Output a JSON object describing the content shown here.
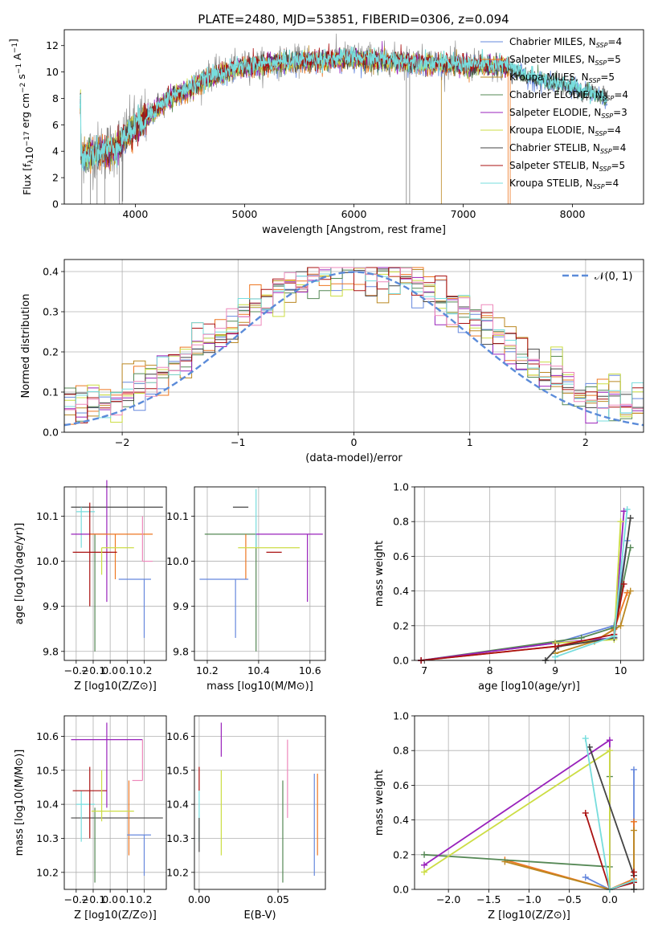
{
  "title": "PLATE=2480, MJD=53851, FIBERID=0306, z=0.094",
  "colors": {
    "CM": "#6688dd",
    "SM": "#ee7722",
    "KM": "#bb8822",
    "CE": "#558855",
    "SE": "#9922bb",
    "KE": "#ccdd44",
    "CS": "#444444",
    "SS": "#aa1111",
    "KS": "#77dddd",
    "data": "#808080",
    "gauss": "#5b8bd9",
    "pink": "#ee88bb"
  },
  "chart_data": [
    {
      "id": "spectrum",
      "type": "line",
      "title": "PLATE=2480, MJD=53851, FIBERID=0306, z=0.094",
      "xlabel": "wavelength [Angstrom, rest frame]",
      "ylabel": "Flux [f_λ 10^-17 erg cm^-2 s^-1 A^-1]",
      "xlim": [
        3350,
        8650
      ],
      "ylim": [
        0,
        13.2
      ],
      "xticks": [
        4000,
        5000,
        6000,
        7000,
        8000
      ],
      "yticks": [
        0,
        2,
        4,
        6,
        8,
        10,
        12
      ],
      "grid": false,
      "legend": "right",
      "x": [
        3500,
        3800,
        4000,
        4300,
        4700,
        5000,
        5500,
        6000,
        6500,
        7000,
        7400,
        7600,
        8000,
        8300,
        8500
      ],
      "series": [
        {
          "name": "data",
          "values": [
            3.8,
            4.2,
            6.0,
            8.0,
            9.8,
            10.5,
            10.9,
            11.2,
            10.9,
            10.6,
            10.3,
            9.5,
            8.6,
            8.0,
            7.6
          ]
        },
        {
          "name": "Kroupa STELIB, N_SSP=4",
          "values": [
            3.6,
            4.1,
            5.8,
            7.9,
            9.6,
            10.4,
            10.8,
            11.0,
            10.7,
            10.5,
            10.4,
            9.6,
            8.8,
            8.1,
            7.6
          ]
        }
      ],
      "legend_entries": [
        {
          "key": "CM",
          "label": "Chabrier MILES, N",
          "sub": "SSP",
          "tail": "=4"
        },
        {
          "key": "SM",
          "label": "Salpeter MILES, N",
          "sub": "SSP",
          "tail": "=5"
        },
        {
          "key": "KM",
          "label": "Kroupa MILES, N",
          "sub": "SSP",
          "tail": "=5"
        },
        {
          "key": "CE",
          "label": "Chabrier ELODIE, N",
          "sub": "SSP",
          "tail": "=4"
        },
        {
          "key": "SE",
          "label": "Salpeter ELODIE, N",
          "sub": "SSP",
          "tail": "=3"
        },
        {
          "key": "KE",
          "label": "Kroupa ELODIE, N",
          "sub": "SSP",
          "tail": "=4"
        },
        {
          "key": "CS",
          "label": "Chabrier STELIB, N",
          "sub": "SSP",
          "tail": "=4"
        },
        {
          "key": "SS",
          "label": "Salpeter STELIB, N",
          "sub": "SSP",
          "tail": "=5"
        },
        {
          "key": "KS",
          "label": "Kroupa STELIB, N",
          "sub": "SSP",
          "tail": "=4"
        }
      ]
    },
    {
      "id": "residuals",
      "type": "line",
      "xlabel": "(data-model)/error",
      "ylabel": "Normed distribution",
      "xlim": [
        -2.5,
        2.5
      ],
      "ylim": [
        0,
        0.43
      ],
      "xticks": [
        -2,
        -1,
        0,
        1,
        2
      ],
      "yticks": [
        0.0,
        0.1,
        0.2,
        0.3,
        0.4
      ],
      "grid": true,
      "legend": "top-right",
      "gauss_label": "𝒩(0, 1)"
    },
    {
      "id": "age_vs_Z",
      "type": "scatter",
      "xlabel": "Z [log10(Z/Z⊙)]",
      "ylabel": "age [log10(age/yr)]",
      "xlim": [
        -0.27,
        0.33
      ],
      "ylim": [
        9.78,
        10.165
      ],
      "xticks": [
        -0.2,
        -0.1,
        0.0,
        0.1,
        0.2
      ],
      "yticks": [
        9.8,
        9.9,
        10.0,
        10.1
      ],
      "grid": true,
      "points": [
        {
          "key": "CS",
          "x": 0.04,
          "y": 10.12,
          "xerr": [
            0.27,
            0.27
          ],
          "yerr": [
            0.0,
            0.0
          ]
        },
        {
          "key": "CE",
          "x": -0.09,
          "y": 10.06,
          "xerr": [
            0.0,
            0.0
          ],
          "yerr": [
            0.26,
            0.0
          ]
        },
        {
          "key": "KS",
          "x": -0.17,
          "y": 10.11,
          "xerr": [
            0.03,
            0.08
          ],
          "yerr": [
            0.08,
            0.01
          ]
        },
        {
          "key": "SE",
          "x": -0.02,
          "y": 10.06,
          "xerr": [
            0.21,
            0.0
          ],
          "yerr": [
            0.15,
            0.12
          ]
        },
        {
          "key": "SM",
          "x": 0.03,
          "y": 10.06,
          "xerr": [
            0.15,
            0.22
          ],
          "yerr": [
            0.1,
            0.0
          ]
        },
        {
          "key": "SS",
          "x": -0.12,
          "y": 10.02,
          "xerr": [
            0.1,
            0.16
          ],
          "yerr": [
            0.12,
            0.11
          ]
        },
        {
          "key": "KE",
          "x": -0.05,
          "y": 10.03,
          "xerr": [
            0.0,
            0.19
          ],
          "yerr": [
            0.06,
            0.0
          ]
        },
        {
          "key": "pink",
          "x": 0.19,
          "y": 10.0,
          "xerr": [
            0.0,
            0.06
          ],
          "yerr": [
            0.0,
            0.1
          ]
        },
        {
          "key": "CM",
          "x": 0.2,
          "y": 9.96,
          "xerr": [
            0.15,
            0.04
          ],
          "yerr": [
            0.13,
            0.0
          ]
        }
      ]
    },
    {
      "id": "age_vs_mass",
      "type": "scatter",
      "xlabel": "mass [log10(M/M⊙)]",
      "ylabel": "",
      "xlim": [
        10.15,
        10.66
      ],
      "ylim": [
        9.78,
        10.165
      ],
      "xticks": [
        10.2,
        10.4,
        10.6
      ],
      "yticks": [
        9.8,
        9.9,
        10.0,
        10.1
      ],
      "grid": true,
      "points": [
        {
          "key": "CS",
          "x": 10.36,
          "y": 10.12,
          "xerr": [
            0.06,
            0.0
          ],
          "yerr": [
            0.0,
            0.0
          ]
        },
        {
          "key": "CE",
          "x": 10.39,
          "y": 10.06,
          "xerr": [
            0.2,
            0.0
          ],
          "yerr": [
            0.26,
            0.0
          ]
        },
        {
          "key": "KS",
          "x": 10.39,
          "y": 10.11,
          "xerr": [
            0.0,
            0.0
          ],
          "yerr": [
            0.08,
            0.05
          ]
        },
        {
          "key": "SE",
          "x": 10.59,
          "y": 10.06,
          "xerr": [
            0.2,
            0.06
          ],
          "yerr": [
            0.15,
            0.0
          ]
        },
        {
          "key": "SM",
          "x": 10.35,
          "y": 10.06,
          "xerr": [
            0.0,
            0.0
          ],
          "yerr": [
            0.1,
            0.0
          ]
        },
        {
          "key": "SS",
          "x": 10.43,
          "y": 10.02,
          "xerr": [
            0.0,
            0.06
          ],
          "yerr": [
            0.0,
            0.0
          ]
        },
        {
          "key": "KE",
          "x": 10.45,
          "y": 10.03,
          "xerr": [
            0.13,
            0.11
          ],
          "yerr": [
            0.0,
            0.0
          ]
        },
        {
          "key": "pink",
          "x": 10.48,
          "y": 10.0,
          "xerr": [
            0.0,
            0.0
          ],
          "yerr": [
            0.0,
            0.0
          ]
        },
        {
          "key": "CM",
          "x": 10.31,
          "y": 9.96,
          "xerr": [
            0.14,
            0.05
          ],
          "yerr": [
            0.13,
            0.0
          ]
        }
      ]
    },
    {
      "id": "weight_vs_age",
      "type": "line",
      "xlabel": "age [log10(age/yr)]",
      "ylabel": "mass weight",
      "xlim": [
        6.85,
        10.35
      ],
      "ylim": [
        0,
        1.0
      ],
      "xticks": [
        7,
        8,
        9,
        10
      ],
      "yticks": [
        0.0,
        0.2,
        0.4,
        0.6,
        0.8,
        1.0
      ],
      "grid": true,
      "series": [
        {
          "key": "CM",
          "x": [
            6.95,
            9.0,
            9.9,
            10.1
          ],
          "y": [
            0.0,
            0.1,
            0.2,
            0.69
          ]
        },
        {
          "key": "SM",
          "x": [
            6.95,
            9.0,
            9.6,
            9.9,
            10.1
          ],
          "y": [
            0.0,
            0.08,
            0.11,
            0.18,
            0.39
          ]
        },
        {
          "key": "KM",
          "x": [
            9.0,
            9.6,
            10.0,
            10.15
          ],
          "y": [
            0.04,
            0.11,
            0.2,
            0.4
          ]
        },
        {
          "key": "CE",
          "x": [
            6.95,
            9.4,
            9.9,
            10.15
          ],
          "y": [
            0.0,
            0.13,
            0.19,
            0.65
          ]
        },
        {
          "key": "SE",
          "x": [
            6.95,
            9.0,
            9.9,
            10.05
          ],
          "y": [
            0.0,
            0.1,
            0.13,
            0.86
          ]
        },
        {
          "key": "KE",
          "x": [
            9.0,
            9.9,
            10.0
          ],
          "y": [
            0.1,
            0.12,
            0.8
          ]
        },
        {
          "key": "CS",
          "x": [
            8.85,
            9.05,
            9.9,
            10.15
          ],
          "y": [
            0.0,
            0.08,
            0.13,
            0.82
          ]
        },
        {
          "key": "SS",
          "x": [
            6.95,
            9.0,
            9.9,
            10.05
          ],
          "y": [
            0.0,
            0.08,
            0.15,
            0.44
          ]
        },
        {
          "key": "KS",
          "x": [
            9.0,
            9.9,
            10.1
          ],
          "y": [
            0.02,
            0.14,
            0.87
          ]
        }
      ]
    },
    {
      "id": "mass_vs_Z",
      "type": "scatter",
      "xlabel": "Z [log10(Z/Z⊙)]",
      "ylabel": "mass [log10(M/M⊙)]",
      "xlim": [
        -0.27,
        0.33
      ],
      "ylim": [
        10.15,
        10.66
      ],
      "xticks": [
        -0.2,
        -0.1,
        0.0,
        0.1,
        0.2
      ],
      "yticks": [
        10.2,
        10.3,
        10.4,
        10.5,
        10.6
      ],
      "grid": true,
      "points": [
        {
          "key": "CS",
          "x": 0.04,
          "y": 10.36,
          "xerr": [
            0.27,
            0.27
          ],
          "yerr": [
            0.0,
            0.0
          ]
        },
        {
          "key": "CE",
          "x": -0.09,
          "y": 10.39,
          "xerr": [
            0.0,
            0.0
          ],
          "yerr": [
            0.22,
            0.0
          ]
        },
        {
          "key": "KS",
          "x": -0.17,
          "y": 10.4,
          "xerr": [
            0.03,
            0.08
          ],
          "yerr": [
            0.11,
            0.04
          ]
        },
        {
          "key": "SE",
          "x": -0.02,
          "y": 10.59,
          "xerr": [
            0.21,
            0.21
          ],
          "yerr": [
            0.2,
            0.05
          ]
        },
        {
          "key": "SM",
          "x": 0.11,
          "y": 10.35,
          "xerr": [
            0.0,
            0.0
          ],
          "yerr": [
            0.1,
            0.12
          ]
        },
        {
          "key": "SS",
          "x": -0.12,
          "y": 10.44,
          "xerr": [
            0.1,
            0.1
          ],
          "yerr": [
            0.14,
            0.07
          ]
        },
        {
          "key": "KE",
          "x": -0.05,
          "y": 10.38,
          "xerr": [
            0.06,
            0.19
          ],
          "yerr": [
            0.03,
            0.12
          ]
        },
        {
          "key": "pink",
          "x": 0.19,
          "y": 10.47,
          "xerr": [
            0.06,
            0.0
          ],
          "yerr": [
            0.0,
            0.12
          ]
        },
        {
          "key": "CM",
          "x": 0.2,
          "y": 10.31,
          "xerr": [
            0.1,
            0.04
          ],
          "yerr": [
            0.12,
            0.0
          ]
        }
      ]
    },
    {
      "id": "mass_vs_EBV",
      "type": "scatter",
      "xlabel": "E(B-V)",
      "ylabel": "",
      "xlim": [
        -0.003,
        0.08
      ],
      "ylim": [
        10.15,
        10.66
      ],
      "xticks": [
        0.0,
        0.05
      ],
      "yticks": [
        10.2,
        10.3,
        10.4,
        10.5,
        10.6
      ],
      "grid": true,
      "points": [
        {
          "key": "SS",
          "x": 0.0,
          "y": 10.44,
          "yerr": [
            0.0,
            0.07
          ]
        },
        {
          "key": "KS",
          "x": 0.0,
          "y": 10.4,
          "yerr": [
            0.11,
            0.04
          ]
        },
        {
          "key": "CS",
          "x": 0.0,
          "y": 10.36,
          "yerr": [
            0.1,
            0.0
          ]
        },
        {
          "key": "KE",
          "x": 0.014,
          "y": 10.38,
          "yerr": [
            0.13,
            0.12
          ]
        },
        {
          "key": "SE",
          "x": 0.014,
          "y": 10.59,
          "yerr": [
            0.05,
            0.05
          ]
        },
        {
          "key": "CE",
          "x": 0.053,
          "y": 10.39,
          "yerr": [
            0.22,
            0.08
          ]
        },
        {
          "key": "pink",
          "x": 0.056,
          "y": 10.47,
          "yerr": [
            0.11,
            0.12
          ]
        },
        {
          "key": "CM",
          "x": 0.073,
          "y": 10.31,
          "yerr": [
            0.12,
            0.18
          ]
        },
        {
          "key": "SM",
          "x": 0.075,
          "y": 10.35,
          "yerr": [
            0.1,
            0.14
          ]
        }
      ]
    },
    {
      "id": "weight_vs_Z",
      "type": "line",
      "xlabel": "Z [log10(Z/Z⊙)]",
      "ylabel": "mass weight",
      "xlim": [
        -2.42,
        0.42
      ],
      "ylim": [
        0,
        1.0
      ],
      "xticks": [
        -2.0,
        -1.5,
        -1.0,
        -0.5,
        0.0
      ],
      "yticks": [
        0.0,
        0.2,
        0.4,
        0.6,
        0.8,
        1.0
      ],
      "grid": true,
      "series": [
        {
          "key": "CM",
          "x": [
            -0.3,
            0.0,
            0.3,
            0.3
          ],
          "y": [
            0.07,
            0.0,
            0.04,
            0.69
          ]
        },
        {
          "key": "SM",
          "x": [
            -1.3,
            0.0,
            0.3,
            0.3
          ],
          "y": [
            0.17,
            0.0,
            0.06,
            0.39
          ]
        },
        {
          "key": "KM",
          "x": [
            -1.3,
            0.0,
            0.3,
            0.3
          ],
          "y": [
            0.16,
            0.0,
            0.05,
            0.34
          ]
        },
        {
          "key": "CE",
          "x": [
            -2.3,
            0.0,
            0.0
          ],
          "y": [
            0.2,
            0.13,
            0.65
          ]
        },
        {
          "key": "SE",
          "x": [
            -2.3,
            0.0,
            0.0
          ],
          "y": [
            0.14,
            0.86,
            0.0
          ]
        },
        {
          "key": "KE",
          "x": [
            -2.3,
            0.0,
            0.0
          ],
          "y": [
            0.1,
            0.8,
            0.0
          ]
        },
        {
          "key": "CS",
          "x": [
            -0.25,
            0.3,
            0.3
          ],
          "y": [
            0.82,
            0.08,
            0.0
          ]
        },
        {
          "key": "SS",
          "x": [
            -0.3,
            0.0,
            0.3,
            0.3
          ],
          "y": [
            0.44,
            0.0,
            0.04,
            0.1
          ]
        },
        {
          "key": "KS",
          "x": [
            -0.3,
            0.0,
            0.3
          ],
          "y": [
            0.87,
            0.0,
            0.05
          ]
        }
      ]
    }
  ]
}
